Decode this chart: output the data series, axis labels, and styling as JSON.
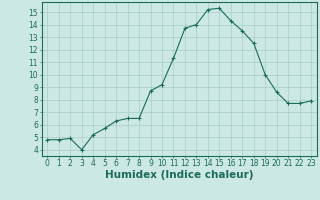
{
  "x": [
    0,
    1,
    2,
    3,
    4,
    5,
    6,
    7,
    8,
    9,
    10,
    11,
    12,
    13,
    14,
    15,
    16,
    17,
    18,
    19,
    20,
    21,
    22,
    23
  ],
  "y": [
    4.8,
    4.8,
    4.9,
    4.0,
    5.2,
    5.7,
    6.3,
    6.5,
    6.5,
    8.7,
    9.2,
    11.3,
    13.7,
    14.0,
    15.2,
    15.3,
    14.3,
    13.5,
    12.5,
    10.0,
    8.6,
    7.7,
    7.7,
    7.9
  ],
  "xlabel": "Humidex (Indice chaleur)",
  "xlim": [
    -0.5,
    23.5
  ],
  "ylim": [
    3.5,
    15.8
  ],
  "yticks": [
    4,
    5,
    6,
    7,
    8,
    9,
    10,
    11,
    12,
    13,
    14,
    15
  ],
  "xticks": [
    0,
    1,
    2,
    3,
    4,
    5,
    6,
    7,
    8,
    9,
    10,
    11,
    12,
    13,
    14,
    15,
    16,
    17,
    18,
    19,
    20,
    21,
    22,
    23
  ],
  "line_color": "#1a6b5a",
  "marker_color": "#1a6b5a",
  "bg_color": "#cce8e4",
  "grid_color": "#aaccc8",
  "axis_color": "#1a6b5a",
  "tick_fontsize": 5.5,
  "xlabel_fontsize": 7.5
}
